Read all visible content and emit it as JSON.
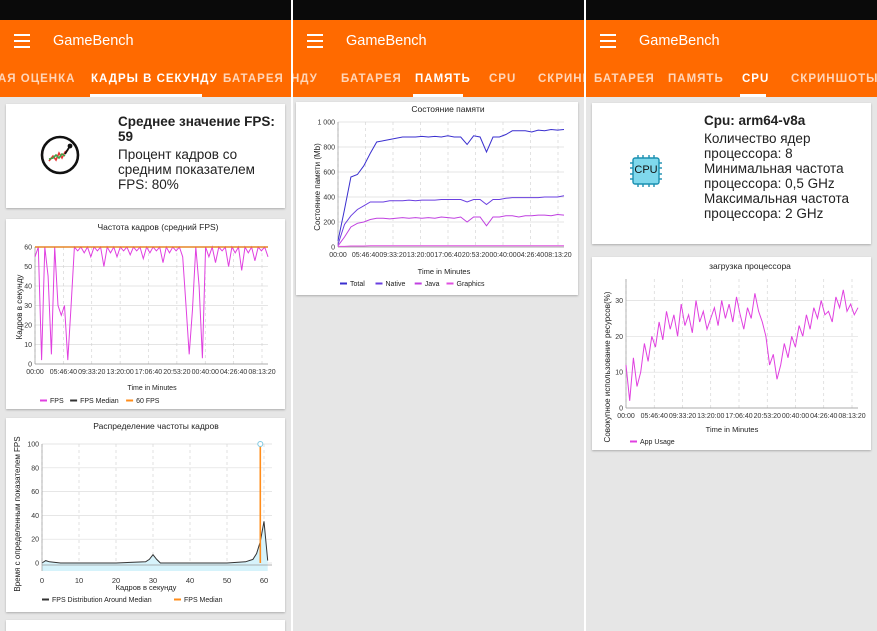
{
  "app_title": "GameBench",
  "screens": [
    {
      "tabs": [
        "АЯ ОЦЕНКА",
        "КАДРЫ В СЕКУНДУ",
        "БАТАРЕЯ"
      ],
      "active_tab": 1,
      "summary": {
        "title": "Среднее значение FPS: 59",
        "line1": "Процент кадров со",
        "line2": "средним показателем",
        "line3": "FPS: 80%"
      },
      "fps_chart_title": "Частота кадров (средний FPS)",
      "fps_ylabel": "Кадров в секунду",
      "fps_xlabel": "Time in Minutes",
      "fps_legend": [
        "FPS",
        "FPS Median",
        "60 FPS"
      ],
      "dist_chart_title": "Распределение частоты кадров",
      "dist_ylabel": "Время с определенным показателем FPS",
      "dist_xlabel": "Кадров в секунду",
      "dist_legend": [
        "FPS Distribution Around Median",
        "FPS Median"
      ]
    },
    {
      "tabs": [
        "НДУ",
        "БАТАРЕЯ",
        "ПАМЯТЬ",
        "CPU",
        "СКРИНШ"
      ],
      "active_tab": 2,
      "mem_chart_title": "Состояние памяти",
      "mem_ylabel": "Состояние памяти (Mb)",
      "mem_xlabel": "Time in Minutes",
      "mem_legend": [
        "Total",
        "Native",
        "Java",
        "Graphics"
      ]
    },
    {
      "tabs": [
        "БАТАРЕЯ",
        "ПАМЯТЬ",
        "CPU",
        "СКРИНШОТЫ"
      ],
      "active_tab": 2,
      "cpu_info": {
        "title": "Cpu: arm64-v8a",
        "line1": "Количество ядер",
        "line2": "процессора: 8",
        "line3": "Минимальная частота",
        "line4": "процессора: 0,5 GHz",
        "line5": "Максимальная частота",
        "line6": "процессора: 2 GHz",
        "chip_label": "CPU"
      },
      "cpu_chart_title": "загрузка процессора",
      "cpu_ylabel": "Совокупное использование ресурсов(%)",
      "cpu_xlabel": "Time in Minutes",
      "cpu_legend": [
        "App Usage"
      ]
    }
  ],
  "colors": {
    "appbar": "#ff6a00",
    "fps": "#e040e0",
    "median": "#333333",
    "target": "#ff8c1a",
    "total": "#3a2fcf",
    "native": "#6a3fe0",
    "java": "#c040e0",
    "graphics": "#e050e0",
    "usage": "#e040e0",
    "dist_fill": "#d6f3fb"
  },
  "chart_data": [
    {
      "type": "line",
      "title": "Частота кадров (средний FPS)",
      "xlabel": "Time in Minutes",
      "ylabel": "Кадров в секунду",
      "x_ticks": [
        "00:00",
        "05:46:40",
        "09:33:20",
        "13:20:00",
        "17:06:40",
        "20:53:20",
        "00:40:00",
        "04:26:40",
        "08:13:20"
      ],
      "y_ticks": [
        0,
        10,
        20,
        30,
        40,
        50,
        60
      ],
      "ylim": [
        0,
        60
      ],
      "series": [
        {
          "name": "FPS",
          "values": [
            55,
            60,
            2,
            60,
            45,
            5,
            60,
            30,
            25,
            30,
            2,
            30,
            60,
            58,
            60,
            57,
            60,
            55,
            60,
            58,
            60,
            50,
            60,
            57,
            60,
            55,
            60,
            58,
            60,
            56,
            60,
            58,
            60,
            54,
            60,
            57,
            60,
            58,
            60,
            52,
            60,
            57,
            60,
            58,
            60,
            55,
            30,
            5,
            28,
            60,
            40,
            3,
            60,
            55,
            60,
            52,
            60,
            58,
            60,
            50,
            60,
            57,
            60,
            48,
            60,
            57,
            60,
            53,
            60,
            58,
            60,
            55
          ]
        },
        {
          "name": "FPS Median",
          "values": [
            60,
            60
          ]
        },
        {
          "name": "60 FPS",
          "values": [
            60,
            60
          ]
        }
      ]
    },
    {
      "type": "area",
      "title": "Распределение частоты кадров",
      "xlabel": "Кадров в секунду",
      "ylabel": "Время с определенным показателем FPS",
      "x_ticks": [
        0,
        10,
        20,
        30,
        40,
        50,
        60
      ],
      "y_ticks": [
        0,
        20,
        40,
        60,
        80,
        100
      ],
      "ylim": [
        0,
        100
      ],
      "series": [
        {
          "name": "FPS Distribution Around Median",
          "x": [
            0,
            1,
            2,
            5,
            10,
            20,
            28,
            29,
            30,
            31,
            32,
            40,
            50,
            55,
            57,
            58,
            59,
            60,
            61
          ],
          "values": [
            0,
            2,
            1,
            0,
            0,
            0,
            1,
            3,
            7,
            3,
            0,
            0,
            0,
            1,
            3,
            8,
            18,
            35,
            2
          ]
        },
        {
          "name": "FPS Median",
          "x": [
            59,
            59
          ],
          "values": [
            0,
            100
          ]
        }
      ]
    },
    {
      "type": "line",
      "title": "Состояние памяти",
      "xlabel": "Time in Minutes",
      "ylabel": "Состояние памяти (Mb)",
      "x_ticks": [
        "00:00",
        "05:46:40",
        "09:33:20",
        "13:20:00",
        "17:06:40",
        "20:53:20",
        "00:40:00",
        "04:26:40",
        "08:13:20"
      ],
      "y_ticks": [
        "0",
        "200",
        "400",
        "600",
        "800",
        "1 000"
      ],
      "ylim": [
        0,
        1000
      ],
      "series": [
        {
          "name": "Total",
          "values": [
            50,
            300,
            560,
            580,
            650,
            750,
            840,
            850,
            860,
            870,
            880,
            880,
            880,
            885,
            880,
            885,
            880,
            890,
            880,
            880,
            820,
            890,
            880,
            760,
            880,
            880,
            900,
            930,
            930,
            930,
            920,
            935,
            930,
            940,
            935,
            940
          ]
        },
        {
          "name": "Native",
          "values": [
            20,
            180,
            250,
            300,
            330,
            360,
            360,
            360,
            370,
            370,
            370,
            375,
            370,
            375,
            375,
            375,
            380,
            380,
            380,
            380,
            360,
            380,
            380,
            340,
            380,
            380,
            390,
            395,
            395,
            395,
            395,
            395,
            400,
            400,
            400,
            410
          ]
        },
        {
          "name": "Java",
          "values": [
            10,
            80,
            160,
            190,
            200,
            220,
            230,
            230,
            225,
            230,
            235,
            230,
            235,
            230,
            235,
            230,
            240,
            235,
            230,
            240,
            200,
            240,
            240,
            170,
            240,
            240,
            250,
            250,
            240,
            250,
            250,
            255,
            255,
            250,
            260,
            255
          ]
        },
        {
          "name": "Graphics",
          "values": [
            5,
            5,
            8,
            8,
            8,
            10,
            10,
            10,
            10,
            10,
            10,
            10,
            10,
            10,
            10,
            10,
            10,
            10,
            10,
            10,
            10,
            10,
            10,
            10,
            10,
            10,
            10,
            10,
            10,
            10,
            10,
            10,
            10,
            10,
            10,
            10
          ]
        }
      ]
    },
    {
      "type": "line",
      "title": "загрузка процессора",
      "xlabel": "Time in Minutes",
      "ylabel": "Совокупное использование ресурсов(%)",
      "x_ticks": [
        "00:00",
        "05:46:40",
        "09:33:20",
        "13:20:00",
        "17:06:40",
        "20:53:20",
        "00:40:00",
        "04:26:40",
        "08:13:20"
      ],
      "y_ticks": [
        0,
        10,
        20,
        30
      ],
      "ylim": [
        0,
        36
      ],
      "series": [
        {
          "name": "App Usage",
          "values": [
            12,
            2,
            14,
            6,
            10,
            18,
            13,
            20,
            17,
            24,
            19,
            27,
            22,
            26,
            20,
            29,
            23,
            26,
            21,
            30,
            24,
            27,
            22,
            25,
            28,
            23,
            30,
            25,
            29,
            24,
            31,
            26,
            22,
            28,
            25,
            32,
            27,
            24,
            20,
            12,
            15,
            8,
            12,
            18,
            14,
            20,
            17,
            23,
            20,
            26,
            22,
            28,
            25,
            30,
            26,
            27,
            24,
            31,
            28,
            33,
            27,
            29,
            26,
            28
          ]
        }
      ]
    }
  ]
}
